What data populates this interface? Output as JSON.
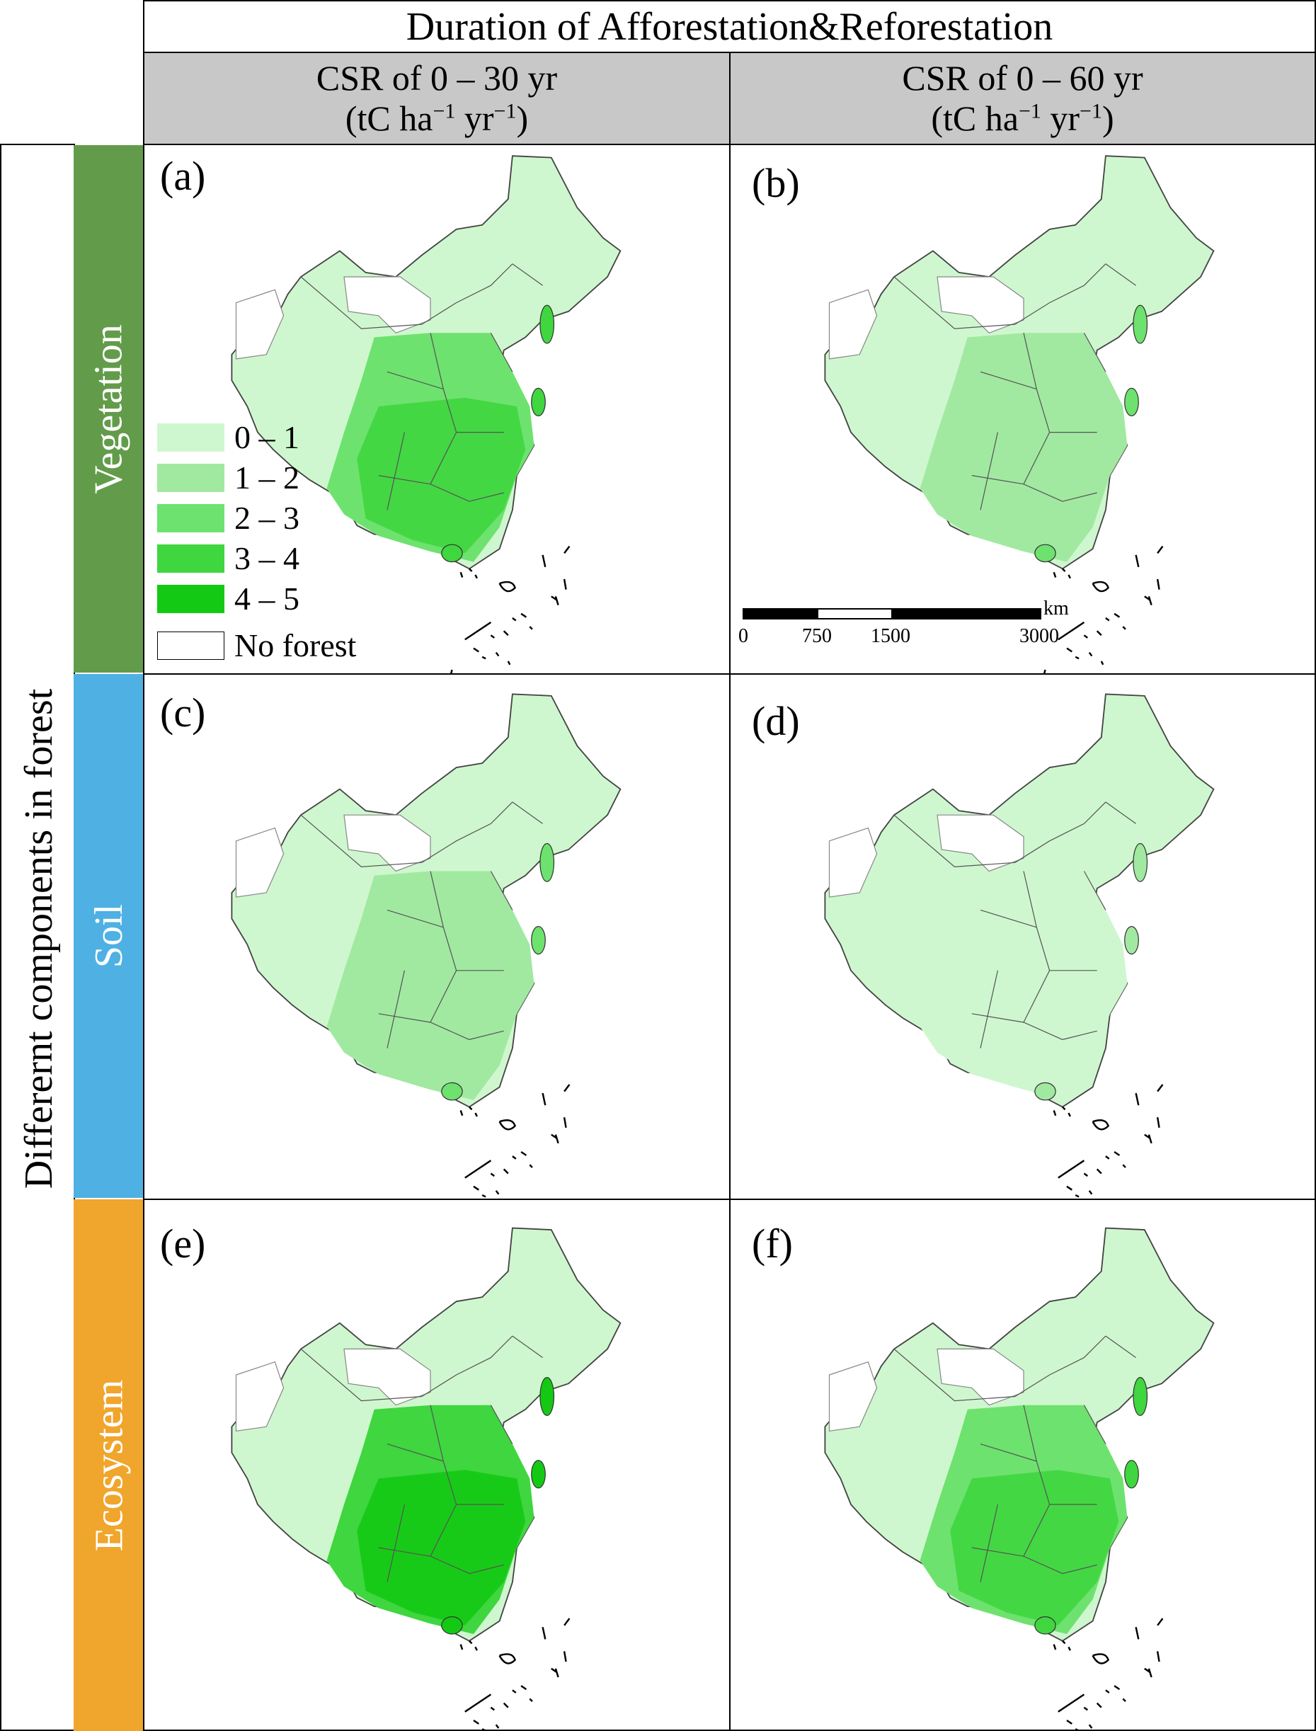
{
  "header": {
    "title": "Duration of Afforestation&Reforestation",
    "col1_line1": "CSR of 0 – 30 yr",
    "col1_unit_a": "(tC ha",
    "col1_sup1": "−1",
    "col1_unit_b": " yr",
    "col1_sup2": "−1",
    "col1_unit_c": ")",
    "col2_line1": "CSR of 0 – 60 yr",
    "col2_unit_a": "(tC ha",
    "col2_sup1": "−1",
    "col2_unit_b": " yr",
    "col2_sup2": "−1",
    "col2_unit_c": ")"
  },
  "rows": {
    "outer_label": "Differernt components in forest",
    "vegetation": "Vegetation",
    "soil": "Soil",
    "ecosystem": "Ecosystem",
    "colors": {
      "vegetation": "#629c4a",
      "soil": "#4fb0e4",
      "ecosystem": "#f0a52c"
    }
  },
  "panels": {
    "a": "(a)",
    "b": "(b)",
    "c": "(c)",
    "d": "(d)",
    "e": "(e)",
    "f": "(f)",
    "levels": {
      "a": 2,
      "b": 1,
      "c": 1,
      "d": 0,
      "e": 3,
      "f": 2
    }
  },
  "legend": {
    "items": [
      {
        "label": "0 – 1",
        "color": "#cff7cf"
      },
      {
        "label": "1 – 2",
        "color": "#a1e9a1"
      },
      {
        "label": "2 – 3",
        "color": "#6ee26e"
      },
      {
        "label": "3 – 4",
        "color": "#3fd63f"
      },
      {
        "label": "4 – 5",
        "color": "#14c914"
      }
    ],
    "no_forest": "No forest",
    "no_forest_color": "#ffffff"
  },
  "scalebar": {
    "unit": "km",
    "ticks": [
      "0",
      "750",
      "1500",
      "3000"
    ]
  }
}
